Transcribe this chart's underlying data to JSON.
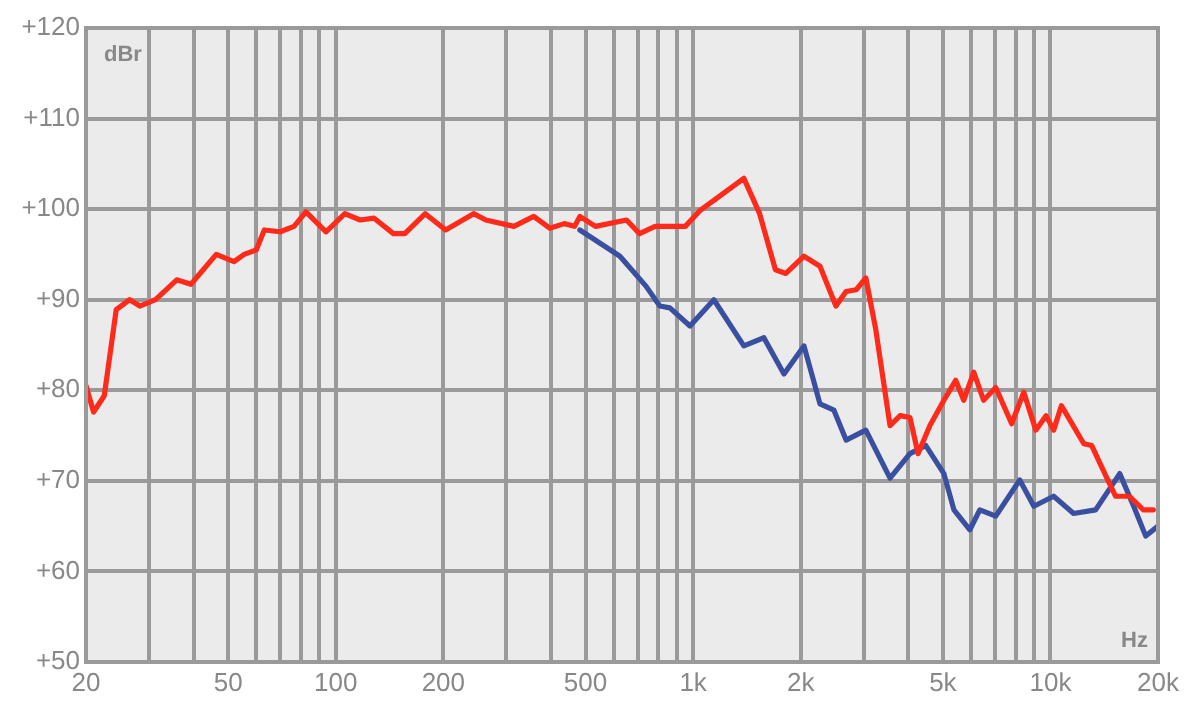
{
  "chart_data": {
    "type": "line",
    "xlabel": "Hz",
    "ylabel": "dBr",
    "log": "x",
    "grid": true,
    "legend": false,
    "marker": "none",
    "line_style": "solid",
    "xlim": [
      20,
      20000
    ],
    "ylim": [
      50,
      120
    ],
    "xticks": [
      20,
      {
        "value": 30,
        "label": null
      },
      {
        "value": 40,
        "label": null
      },
      50,
      {
        "value": 60,
        "label": null
      },
      {
        "value": 70,
        "label": null
      },
      {
        "value": 80,
        "label": null
      },
      {
        "value": 90,
        "label": null
      },
      100,
      200,
      {
        "value": 300,
        "label": null
      },
      {
        "value": 400,
        "label": null
      },
      500,
      {
        "value": 600,
        "label": null
      },
      {
        "value": 700,
        "label": null
      },
      {
        "value": 800,
        "label": null
      },
      {
        "value": 900,
        "label": null
      },
      {
        "value": 1000,
        "label": "1k"
      },
      {
        "value": 2000,
        "label": "2k"
      },
      {
        "value": 3000,
        "label": null
      },
      {
        "value": 4000,
        "label": null
      },
      {
        "value": 5000,
        "label": "5k"
      },
      {
        "value": 6000,
        "label": null
      },
      {
        "value": 7000,
        "label": null
      },
      {
        "value": 8000,
        "label": null
      },
      {
        "value": 9000,
        "label": null
      },
      {
        "value": 10000,
        "label": "10k"
      },
      {
        "value": 20000,
        "label": "20k"
      }
    ],
    "yticks": [
      {
        "value": 50,
        "label": "+50"
      },
      {
        "value": 60,
        "label": "+60"
      },
      {
        "value": 70,
        "label": "+70"
      },
      {
        "value": 80,
        "label": "+80"
      },
      {
        "value": 90,
        "label": "+90"
      },
      {
        "value": 100,
        "label": "+100"
      },
      {
        "value": 110,
        "label": "+110"
      },
      {
        "value": 120,
        "label": "+120"
      }
    ],
    "series": [
      {
        "color": "#ff2a1a",
        "x": [
          20,
          21,
          22.5,
          24.3,
          26.5,
          28.3,
          31.3,
          35.9,
          39.3,
          41.7,
          46.3,
          51.9,
          55.4,
          59.9,
          63.1,
          69.9,
          76.4,
          82.5,
          93.9,
          106,
          117,
          128,
          145,
          156,
          178,
          203,
          243,
          263,
          315,
          358,
          397,
          436,
          466,
          482,
          533,
          651,
          708,
          783,
          951,
          1049,
          1387,
          1535,
          1700,
          1818,
          2043,
          2265,
          2510,
          2680,
          2860,
          3044,
          3245,
          3557,
          3796,
          4045,
          4260,
          4600,
          5033,
          5430,
          5720,
          6100,
          6500,
          7030,
          7790,
          8420,
          9100,
          9720,
          10210,
          10730,
          12400,
          13050,
          14270,
          15220,
          16640,
          18200,
          19400
        ],
        "values": [
          80.5,
          77.6,
          79.4,
          88.9,
          90,
          89.3,
          90,
          92.2,
          91.7,
          92.9,
          95,
          94.2,
          95,
          95.5,
          97.7,
          97.5,
          98.1,
          99.7,
          97.5,
          99.5,
          98.8,
          99,
          97.3,
          97.3,
          99.5,
          97.7,
          99.5,
          98.8,
          98.1,
          99.2,
          97.9,
          98.4,
          98.1,
          99.2,
          98.1,
          98.8,
          97.3,
          98.1,
          98.1,
          99.9,
          103.4,
          99.5,
          93.3,
          92.9,
          94.8,
          93.7,
          89.3,
          90.9,
          91.1,
          92.4,
          86.7,
          76.1,
          77.2,
          77,
          73,
          76.1,
          78.9,
          81.1,
          78.9,
          82,
          78.9,
          80.3,
          76.3,
          79.8,
          75.6,
          77.2,
          75.6,
          78.3,
          74.1,
          73.9,
          70.6,
          68.3,
          68.3,
          66.8,
          66.8
        ]
      },
      {
        "color": "#3a4fa0",
        "x": [
          482,
          624,
          738,
          807,
          861,
          980,
          1143,
          1387,
          1578,
          1796,
          2043,
          2265,
          2478,
          2680,
          3044,
          3557,
          4045,
          4481,
          5033,
          5370,
          5950,
          6343,
          7030,
          8206,
          8987,
          10210,
          11610,
          13380,
          15630,
          17100,
          18480,
          20000
        ],
        "values": [
          97.7,
          94.8,
          91.5,
          89.3,
          89.1,
          87.1,
          90,
          84.9,
          85.8,
          81.8,
          84.9,
          78.5,
          77.8,
          74.5,
          75.6,
          70.3,
          73,
          73.9,
          70.8,
          66.8,
          64.6,
          66.8,
          66.1,
          70.1,
          67.2,
          68.3,
          66.4,
          66.8,
          70.8,
          67.2,
          63.9,
          65
        ]
      }
    ]
  }
}
